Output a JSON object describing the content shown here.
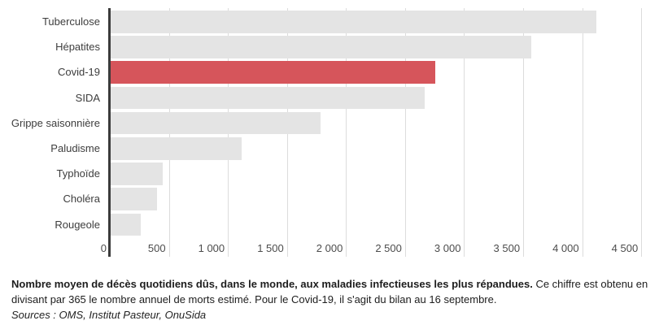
{
  "chart_data": {
    "type": "bar",
    "orientation": "horizontal",
    "title": "",
    "xlabel": "",
    "ylabel": "",
    "grid": true,
    "legend": false,
    "categories": [
      "Tuberculose",
      "Hépatites",
      "Covid-19",
      "SIDA",
      "Grippe saisonnière",
      "Paludisme",
      "Typhoïde",
      "Choléra",
      "Rougeole"
    ],
    "values": [
      4110,
      3560,
      2750,
      2660,
      1780,
      1110,
      440,
      395,
      255
    ],
    "highlight_index": 2,
    "highlight_category": "Covid-19",
    "xlim": [
      0,
      4650
    ],
    "x_ticks": [
      {
        "value": 0,
        "label": "0"
      },
      {
        "value": 500,
        "label": "500"
      },
      {
        "value": 1000,
        "label": "1 000"
      },
      {
        "value": 1500,
        "label": "1 500"
      },
      {
        "value": 2000,
        "label": "2 000"
      },
      {
        "value": 2500,
        "label": "2 500"
      },
      {
        "value": 3000,
        "label": "3 000"
      },
      {
        "value": 3500,
        "label": "3 500"
      },
      {
        "value": 4000,
        "label": "4 000"
      },
      {
        "value": 4500,
        "label": "4 500"
      }
    ],
    "colors": {
      "bar": "#e4e4e4",
      "highlight": "#d6555b",
      "axis_line": "#3b3b3b",
      "gridline": "#dcdcdc"
    }
  },
  "caption": {
    "bold": "Nombre moyen de décès quotidiens dûs, dans le monde, aux maladies infectieuses les plus répandues.",
    "regular": "Ce chiffre est obtenu en divisant par 365 le nombre annuel de morts estimé. Pour le Covid-19, il s'agit du bilan au 16 septembre.",
    "sources": "Sources : OMS, Institut Pasteur, OnuSida"
  }
}
